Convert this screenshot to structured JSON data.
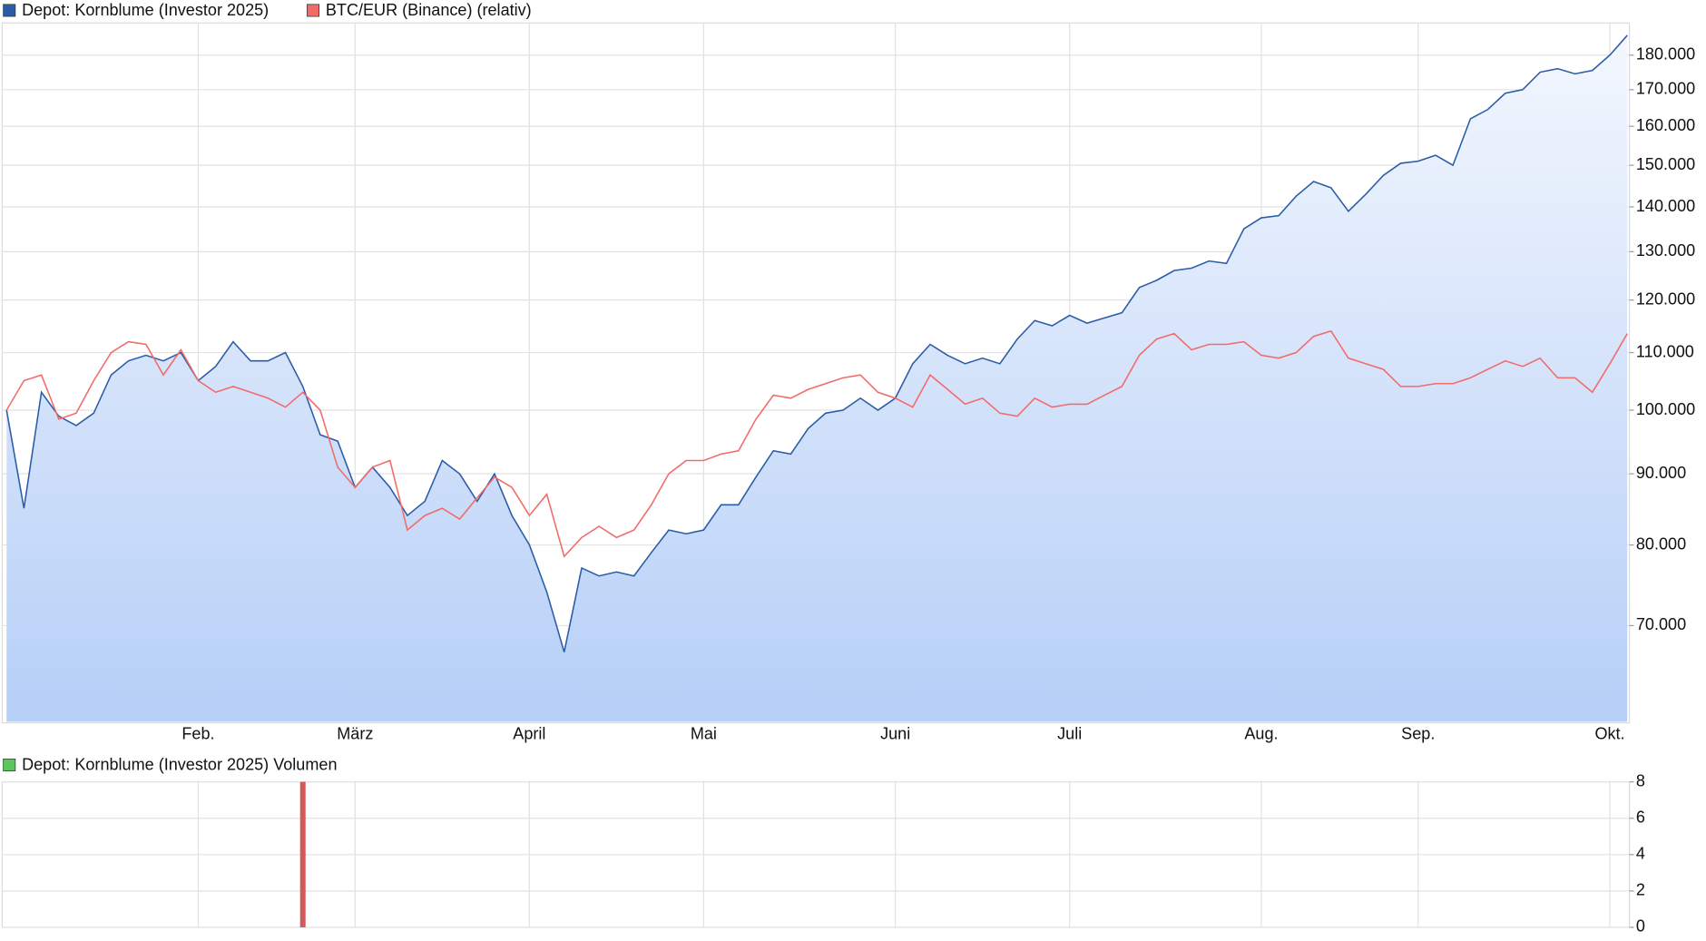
{
  "chart_data": [
    {
      "type": "line",
      "log_scale": true,
      "grid": true,
      "legend": "top-left",
      "categories": [
        null,
        null,
        null,
        null,
        null,
        null,
        null,
        null,
        null,
        null,
        null,
        "Feb.",
        null,
        null,
        null,
        null,
        null,
        null,
        null,
        null,
        "März",
        null,
        null,
        null,
        null,
        null,
        null,
        null,
        null,
        null,
        "April",
        null,
        null,
        null,
        null,
        null,
        null,
        null,
        null,
        null,
        "Mai",
        null,
        null,
        null,
        null,
        null,
        null,
        null,
        null,
        null,
        null,
        "Juni",
        null,
        null,
        null,
        null,
        null,
        null,
        null,
        null,
        null,
        "Juli",
        null,
        null,
        null,
        null,
        null,
        null,
        null,
        null,
        null,
        null,
        "Aug.",
        null,
        null,
        null,
        null,
        null,
        null,
        null,
        null,
        "Sep.",
        null,
        null,
        null,
        null,
        null,
        null,
        null,
        null,
        null,
        null,
        "Okt.",
        null
      ],
      "series": [
        {
          "name": "Depot: Kornblume (Investor 2025)",
          "color": "#2a5ca8",
          "fill": true,
          "values": [
            100000,
            85000,
            103000,
            99000,
            97500,
            99500,
            106000,
            108500,
            109500,
            108500,
            110000,
            105000,
            107500,
            112000,
            108500,
            108500,
            110000,
            104000,
            96000,
            95000,
            88000,
            91000,
            88000,
            84000,
            86000,
            92000,
            90000,
            86000,
            90000,
            84000,
            80000,
            74000,
            67000,
            77000,
            76000,
            76500,
            76000,
            79000,
            82000,
            81500,
            82000,
            85500,
            85500,
            89500,
            93500,
            93000,
            97000,
            99500,
            100000,
            102000,
            100000,
            102000,
            108000,
            111500,
            109500,
            108000,
            109000,
            108000,
            112500,
            116000,
            115000,
            117000,
            115500,
            116500,
            117500,
            122500,
            124000,
            126000,
            126500,
            128000,
            127500,
            135000,
            137500,
            138000,
            142500,
            146000,
            144500,
            139000,
            143000,
            147500,
            150500,
            151000,
            152500,
            150000,
            162000,
            164500,
            169000,
            170000,
            175000,
            176000,
            174500,
            175500,
            180000,
            186000
          ]
        },
        {
          "name": "BTC/EUR (Binance) (relativ)",
          "color": "#f26b6b",
          "values": [
            100000,
            105000,
            106000,
            98500,
            99500,
            105000,
            110000,
            112000,
            111500,
            106000,
            110500,
            105000,
            103000,
            104000,
            103000,
            102000,
            100500,
            103000,
            100000,
            91000,
            88000,
            91000,
            92000,
            82000,
            84000,
            85000,
            83500,
            86500,
            89500,
            88000,
            84000,
            87000,
            78500,
            81000,
            82500,
            81000,
            82000,
            85500,
            90000,
            92000,
            92000,
            93000,
            93500,
            98500,
            102500,
            102000,
            103500,
            104500,
            105500,
            106000,
            103000,
            102000,
            100500,
            106000,
            103500,
            101000,
            102000,
            99500,
            99000,
            102000,
            100500,
            101000,
            101000,
            102500,
            104000,
            109500,
            112500,
            113500,
            110500,
            111500,
            111500,
            112000,
            109500,
            109000,
            110000,
            113000,
            114000,
            109000,
            108000,
            107000,
            104000,
            104000,
            104500,
            104500,
            105500,
            107000,
            108500,
            107500,
            109000,
            105500,
            105500,
            103000,
            108000,
            113500
          ]
        }
      ],
      "ylim": [
        59700,
        189500
      ],
      "yticks": [
        {
          "value": 70000,
          "label": "70.000"
        },
        {
          "value": 80000,
          "label": "80.000"
        },
        {
          "value": 90000,
          "label": "90.000"
        },
        {
          "value": 100000,
          "label": "100.000"
        },
        {
          "value": 110000,
          "label": "110.000"
        },
        {
          "value": 120000,
          "label": "120.000"
        },
        {
          "value": 130000,
          "label": "130.000"
        },
        {
          "value": 140000,
          "label": "140.000"
        },
        {
          "value": 150000,
          "label": "150.000"
        },
        {
          "value": 160000,
          "label": "160.000"
        },
        {
          "value": 170000,
          "label": "170.000"
        },
        {
          "value": 180000,
          "label": "180.000"
        }
      ]
    },
    {
      "type": "bar",
      "grid": true,
      "legend": "top-left",
      "series": [
        {
          "name": "Depot: Kornblume (Investor 2025) Volumen",
          "color": "#5cc65c",
          "bar_color": "#d25a5a",
          "values": [
            0,
            0,
            0,
            0,
            0,
            0,
            0,
            0,
            0,
            0,
            0,
            0,
            0,
            0,
            0,
            0,
            0,
            8,
            0,
            0,
            0,
            0,
            0,
            0,
            0,
            0,
            0,
            0,
            0,
            0,
            0,
            0,
            0,
            0,
            0,
            0,
            0,
            0,
            0,
            0,
            0,
            0,
            0,
            0,
            0,
            0,
            0,
            0,
            0,
            0,
            0,
            0,
            0,
            0,
            0,
            0,
            0,
            0,
            0,
            0,
            0,
            0,
            0,
            0,
            0,
            0,
            0,
            0,
            0,
            0,
            0,
            0,
            0,
            0,
            0,
            0,
            0,
            0,
            0,
            0,
            0,
            0,
            0,
            0,
            0,
            0,
            0,
            0,
            0,
            0,
            0,
            0,
            0,
            0
          ]
        }
      ],
      "ylim": [
        0,
        8
      ],
      "yticks": [
        0,
        2,
        4,
        6,
        8
      ]
    }
  ]
}
